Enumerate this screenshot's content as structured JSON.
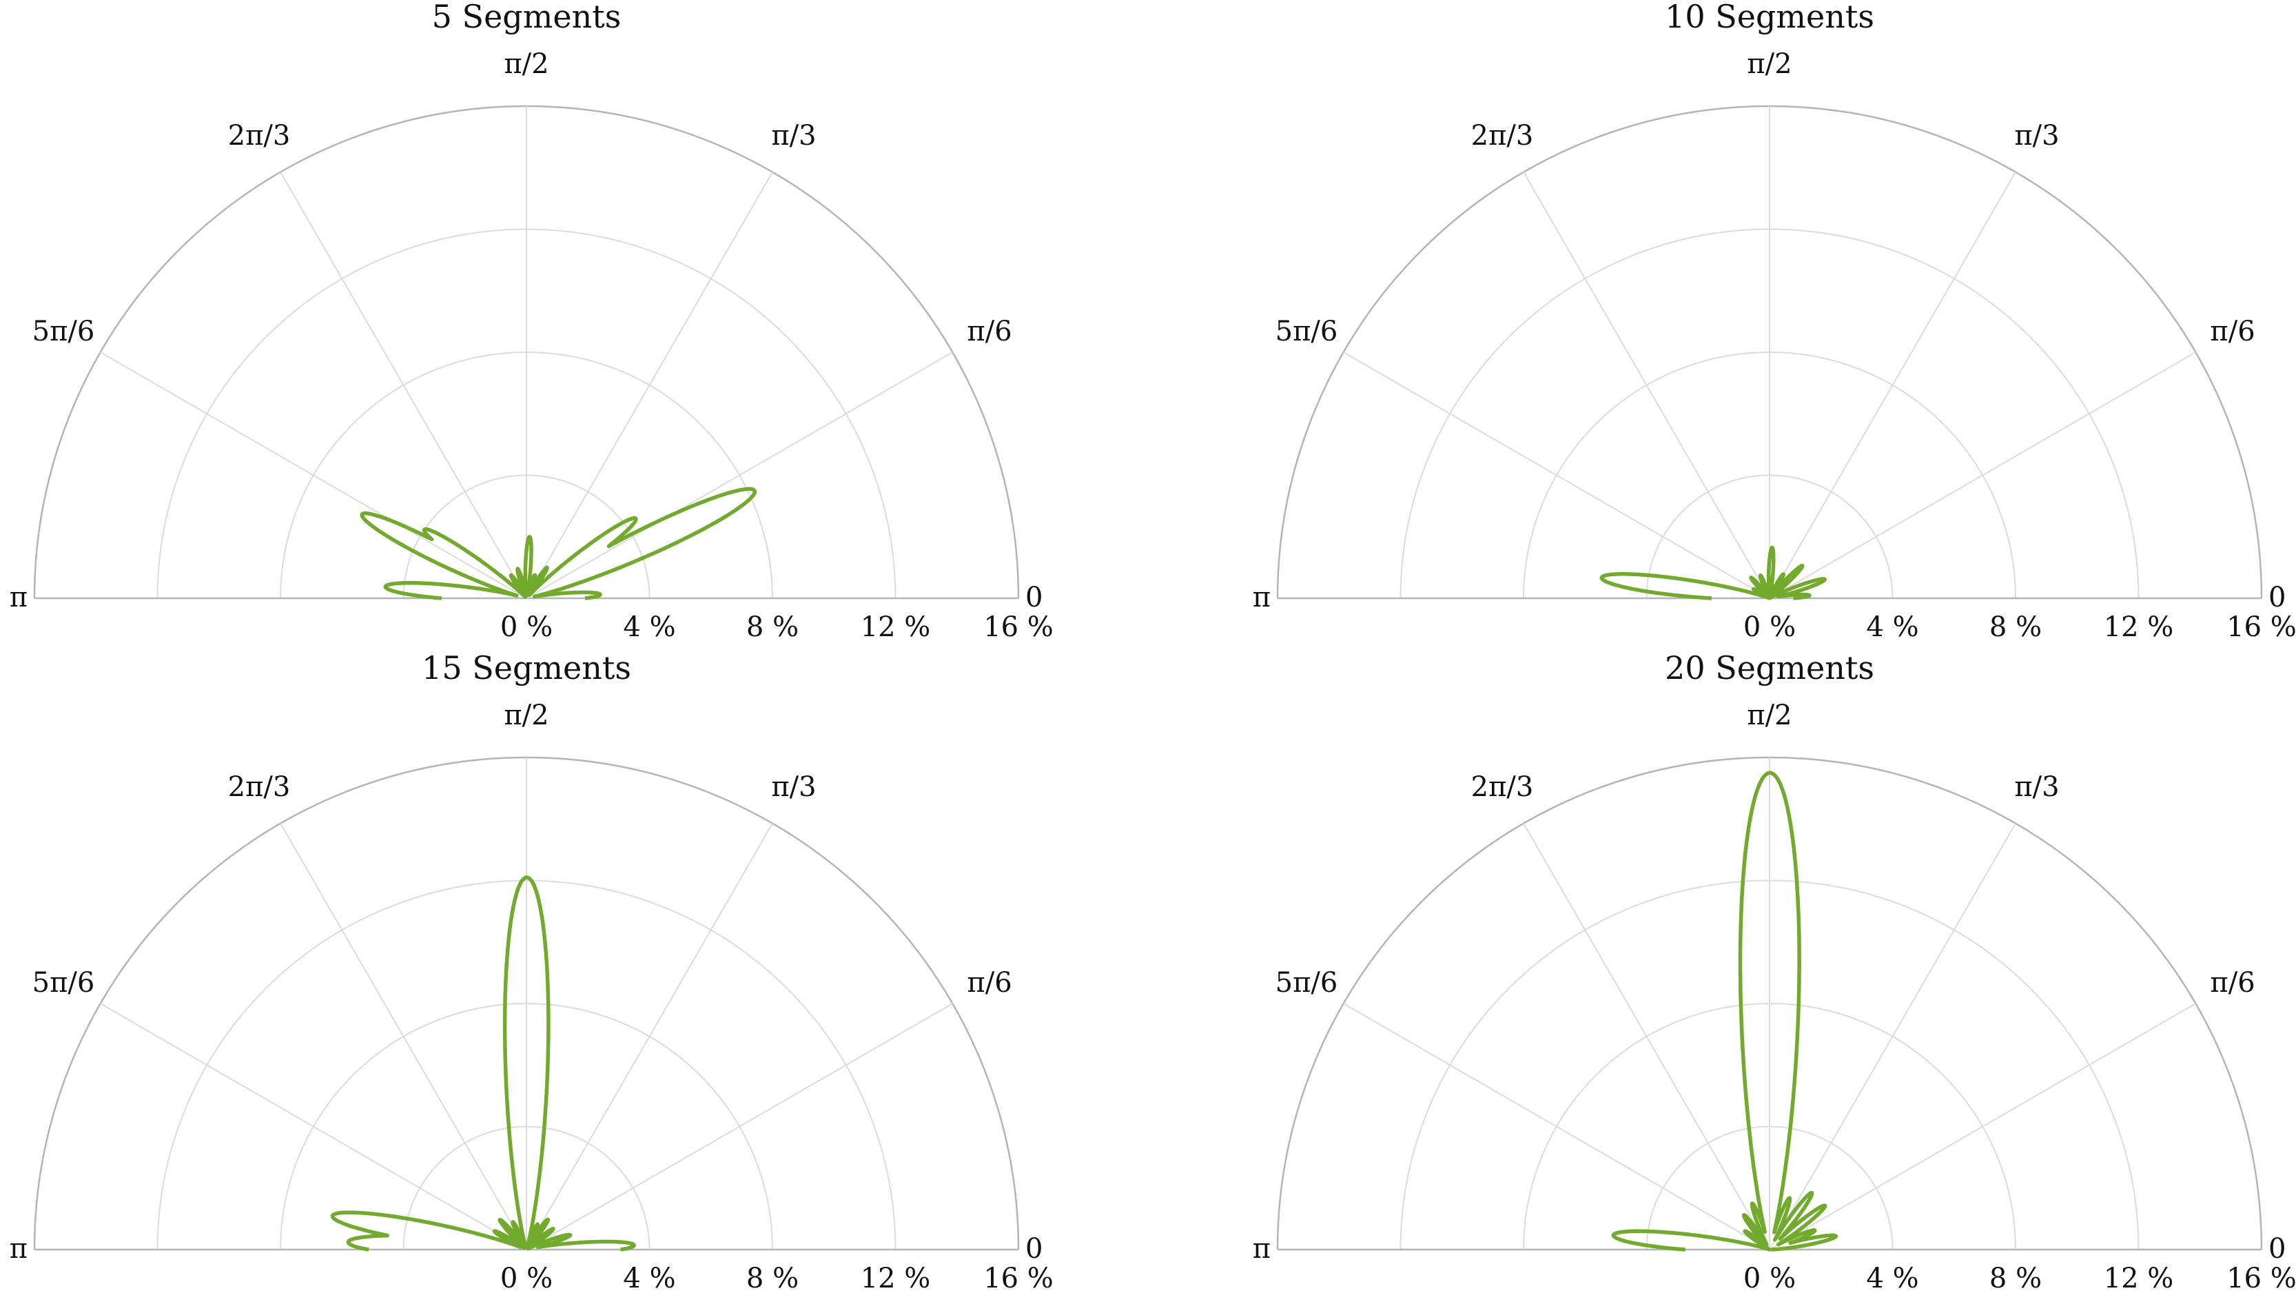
{
  "chart_data": [
    {
      "type": "polar-line",
      "title": "5 Segments",
      "r_ticks": [
        "0 %",
        "4 %",
        "8 %",
        "12 %",
        "16 %"
      ],
      "r_lim": [
        0,
        16
      ],
      "theta_ticks": [
        "0",
        "π/6",
        "π/3",
        "π/2",
        "2π/3",
        "5π/6",
        "π"
      ],
      "theta_range": [
        0,
        3.14159
      ],
      "grid": true,
      "color": "#72aa2e",
      "lobes": [
        {
          "theta": 0.05,
          "r": 2.4
        },
        {
          "theta": 0.44,
          "r": 8.2
        },
        {
          "theta": 0.63,
          "r": 4.4
        },
        {
          "theta": 0.98,
          "r": 1.2
        },
        {
          "theta": 1.22,
          "r": 0.8
        },
        {
          "theta": 1.52,
          "r": 2.0
        },
        {
          "theta": 1.86,
          "r": 1.0
        },
        {
          "theta": 2.16,
          "r": 0.9
        },
        {
          "theta": 2.55,
          "r": 4.0
        },
        {
          "theta": 2.67,
          "r": 6.0
        },
        {
          "theta": 3.06,
          "r": 4.6
        }
      ]
    },
    {
      "type": "polar-line",
      "title": "10 Segments",
      "r_ticks": [
        "0 %",
        "4 %",
        "8 %",
        "12 %",
        "16 %"
      ],
      "r_lim": [
        0,
        16
      ],
      "theta_ticks": [
        "0",
        "π/6",
        "π/3",
        "π/2",
        "2π/3",
        "5π/6",
        "π"
      ],
      "theta_range": [
        0,
        3.14159
      ],
      "grid": true,
      "color": "#72aa2e",
      "lobes": [
        {
          "theta": 0.07,
          "r": 1.3
        },
        {
          "theta": 0.33,
          "r": 1.9
        },
        {
          "theta": 0.78,
          "r": 1.5
        },
        {
          "theta": 1.05,
          "r": 0.9
        },
        {
          "theta": 1.52,
          "r": 1.65
        },
        {
          "theta": 1.95,
          "r": 0.8
        },
        {
          "theta": 2.3,
          "r": 0.9
        },
        {
          "theta": 2.62,
          "r": 0.6
        },
        {
          "theta": 3.02,
          "r": 5.5
        }
      ]
    },
    {
      "type": "polar-line",
      "title": "15 Segments",
      "r_ticks": [
        "0 %",
        "4 %",
        "8 %",
        "12 %",
        "16 %"
      ],
      "r_lim": [
        0,
        16
      ],
      "theta_ticks": [
        "0",
        "π/6",
        "π/3",
        "π/2",
        "2π/3",
        "5π/6",
        "π"
      ],
      "theta_range": [
        0,
        3.14159
      ],
      "grid": true,
      "color": "#72aa2e",
      "lobes": [
        {
          "theta": 0.04,
          "r": 3.5
        },
        {
          "theta": 0.32,
          "r": 1.5
        },
        {
          "theta": 0.66,
          "r": 1.1
        },
        {
          "theta": 0.95,
          "r": 1.2
        },
        {
          "theta": 1.16,
          "r": 0.9
        },
        {
          "theta": 1.57,
          "r": 12.1
        },
        {
          "theta": 2.03,
          "r": 1.0
        },
        {
          "theta": 2.3,
          "r": 1.3
        },
        {
          "theta": 2.62,
          "r": 1.2
        },
        {
          "theta": 2.97,
          "r": 6.4
        },
        {
          "theta": 3.1,
          "r": 5.8
        }
      ]
    },
    {
      "type": "polar-line",
      "title": "20 Segments",
      "r_ticks": [
        "0 %",
        "4 %",
        "8 %",
        "12 %",
        "16 %"
      ],
      "r_lim": [
        0,
        16
      ],
      "theta_ticks": [
        "0",
        "π/6",
        "π/3",
        "π/2",
        "2π/3",
        "5π/6",
        "π"
      ],
      "theta_range": [
        0,
        3.14159
      ],
      "grid": true,
      "color": "#72aa2e",
      "lobes": [
        {
          "theta": 0.2,
          "r": 2.2
        },
        {
          "theta": 0.4,
          "r": 1.6
        },
        {
          "theta": 0.67,
          "r": 2.3
        },
        {
          "theta": 0.93,
          "r": 2.3
        },
        {
          "theta": 1.2,
          "r": 1.8
        },
        {
          "theta": 1.57,
          "r": 15.5
        },
        {
          "theta": 1.93,
          "r": 1.6
        },
        {
          "theta": 2.21,
          "r": 1.4
        },
        {
          "theta": 2.5,
          "r": 1.0
        },
        {
          "theta": 3.05,
          "r": 5.1
        }
      ]
    }
  ]
}
